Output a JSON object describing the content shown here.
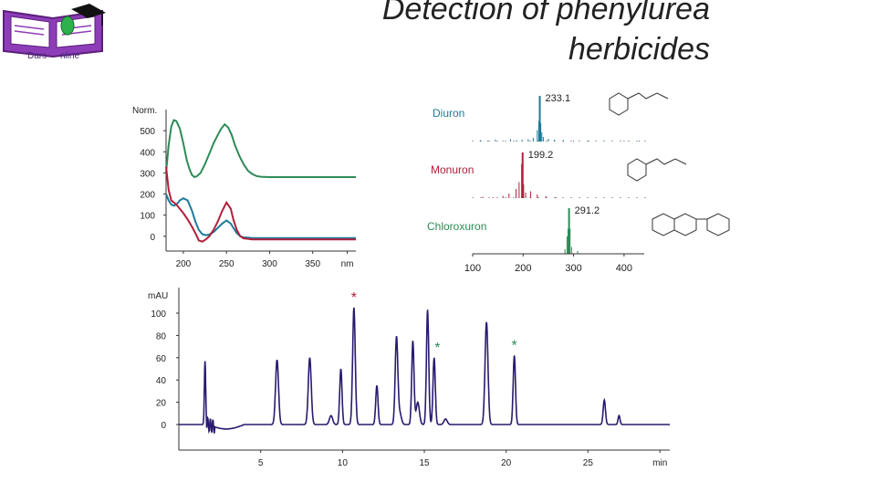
{
  "slide": {
    "title_line1": "Detection of phenylurea",
    "title_line2": "herbicides",
    "logo_text_left": "Dars",
    "logo_text_right": "nline"
  },
  "chart_data": [
    {
      "type": "line",
      "name": "uv-spectra",
      "ylabel": "Norm.",
      "xlabel": "nm",
      "x_ticks": [
        "200",
        "250",
        "300",
        "350",
        "nm"
      ],
      "y_ticks": [
        "500",
        "400",
        "300",
        "200",
        "100",
        "0"
      ],
      "xlim": [
        180,
        400
      ],
      "ylim": [
        -70,
        600
      ],
      "series": [
        {
          "color": "#2e8b57",
          "x": [
            180,
            183,
            186,
            189,
            192,
            196,
            200,
            204,
            207,
            210,
            213,
            216,
            220,
            225,
            230,
            235,
            240,
            244,
            248,
            252,
            256,
            260,
            265,
            270,
            275,
            280,
            285,
            290,
            300,
            320,
            340,
            360,
            380,
            400
          ],
          "y": [
            300,
            430,
            520,
            550,
            545,
            510,
            440,
            360,
            320,
            290,
            280,
            285,
            300,
            340,
            390,
            440,
            480,
            510,
            530,
            515,
            480,
            430,
            380,
            340,
            310,
            295,
            285,
            282,
            280,
            280,
            280,
            280,
            280,
            280
          ]
        },
        {
          "color": "#1f7a9a",
          "x": [
            180,
            183,
            186,
            189,
            192,
            196,
            200,
            205,
            210,
            214,
            218,
            222,
            226,
            230,
            235,
            240,
            245,
            250,
            255,
            258,
            262,
            266,
            270,
            275,
            280,
            290,
            300,
            320,
            340,
            360,
            380,
            400
          ],
          "y": [
            200,
            170,
            150,
            145,
            150,
            170,
            180,
            170,
            120,
            70,
            30,
            10,
            5,
            8,
            20,
            40,
            60,
            75,
            60,
            40,
            15,
            0,
            -5,
            -6,
            -8,
            -8,
            -8,
            -8,
            -8,
            -8,
            -8,
            -8
          ]
        },
        {
          "color": "#b0203a",
          "x": [
            180,
            183,
            186,
            189,
            192,
            196,
            200,
            205,
            210,
            214,
            218,
            222,
            226,
            230,
            235,
            240,
            245,
            250,
            255,
            258,
            262,
            266,
            270,
            275,
            280,
            290,
            300,
            320,
            340,
            360,
            380,
            400
          ],
          "y": [
            330,
            220,
            170,
            160,
            150,
            130,
            110,
            80,
            45,
            15,
            -20,
            -25,
            -15,
            0,
            30,
            70,
            120,
            160,
            130,
            80,
            30,
            0,
            -10,
            -12,
            -15,
            -15,
            -15,
            -15,
            -15,
            -15,
            -15,
            -15
          ]
        }
      ]
    },
    {
      "type": "bar",
      "name": "mass-spectra",
      "x_ticks": [
        "100",
        "200",
        "300",
        "400"
      ],
      "xlim": [
        100,
        440
      ],
      "panels": [
        {
          "label": "Diuron",
          "peak_label": "233.1",
          "color": "#1f7a9a",
          "mz": [
            115,
            130,
            145,
            160,
            175,
            187,
            198,
            210,
            220,
            228,
            231,
            233,
            235,
            237,
            240,
            250,
            262,
            280,
            300,
            330,
            360,
            400,
            430
          ],
          "intensity": [
            3,
            2,
            4,
            2,
            5,
            3,
            4,
            5,
            8,
            25,
            45,
            100,
            40,
            20,
            10,
            6,
            4,
            3,
            2,
            2,
            2,
            2,
            2
          ]
        },
        {
          "label": "Monuron",
          "peak_label": "199.2",
          "color": "#b0203a",
          "mz": [
            120,
            140,
            160,
            172,
            186,
            192,
            197,
            199,
            201,
            205,
            215,
            228,
            245,
            265
          ],
          "intensity": [
            3,
            2,
            5,
            10,
            20,
            35,
            75,
            100,
            30,
            12,
            15,
            8,
            4,
            2
          ]
        },
        {
          "label": "Chloroxuron",
          "peak_label": "291.2",
          "color": "#2e8b57",
          "mz": [
            283,
            287,
            289,
            291,
            293,
            296,
            308
          ],
          "intensity": [
            10,
            38,
            55,
            100,
            55,
            15,
            6
          ]
        }
      ]
    },
    {
      "type": "line",
      "name": "chromatogram",
      "ylabel": "mAU",
      "xlabel": "min",
      "x_ticks": [
        "5",
        "10",
        "15",
        "20",
        "25",
        "min"
      ],
      "y_ticks": [
        "100",
        "80",
        "60",
        "40",
        "20",
        "0"
      ],
      "xlim": [
        0,
        30
      ],
      "ylim": [
        -20,
        115
      ],
      "color": "#2a1a6e",
      "peaks": [
        {
          "t": 1.6,
          "h": 57,
          "w": 0.04
        },
        {
          "t": 6.0,
          "h": 58,
          "w": 0.09
        },
        {
          "t": 8.0,
          "h": 60,
          "w": 0.09
        },
        {
          "t": 9.3,
          "h": 8,
          "w": 0.1
        },
        {
          "t": 9.9,
          "h": 50,
          "w": 0.07
        },
        {
          "t": 10.7,
          "h": 105,
          "w": 0.08
        },
        {
          "t": 12.1,
          "h": 35,
          "w": 0.07
        },
        {
          "t": 13.3,
          "h": 78,
          "w": 0.08
        },
        {
          "t": 13.5,
          "h": 10,
          "w": 0.1
        },
        {
          "t": 14.3,
          "h": 75,
          "w": 0.07
        },
        {
          "t": 14.6,
          "h": 20,
          "w": 0.1
        },
        {
          "t": 15.2,
          "h": 103,
          "w": 0.07
        },
        {
          "t": 15.6,
          "h": 60,
          "w": 0.07
        },
        {
          "t": 16.3,
          "h": 5,
          "w": 0.1
        },
        {
          "t": 18.8,
          "h": 92,
          "w": 0.09
        },
        {
          "t": 20.5,
          "h": 62,
          "w": 0.07
        },
        {
          "t": 26.0,
          "h": 22,
          "w": 0.07
        },
        {
          "t": 26.9,
          "h": 8,
          "w": 0.06
        }
      ],
      "markers": [
        {
          "t": 10.7,
          "color": "#b0203a",
          "symbol": "*"
        },
        {
          "t": 15.8,
          "color": "#2e8b57",
          "symbol": "*"
        },
        {
          "t": 20.5,
          "color": "#2e8b57",
          "symbol": "*"
        }
      ]
    }
  ]
}
